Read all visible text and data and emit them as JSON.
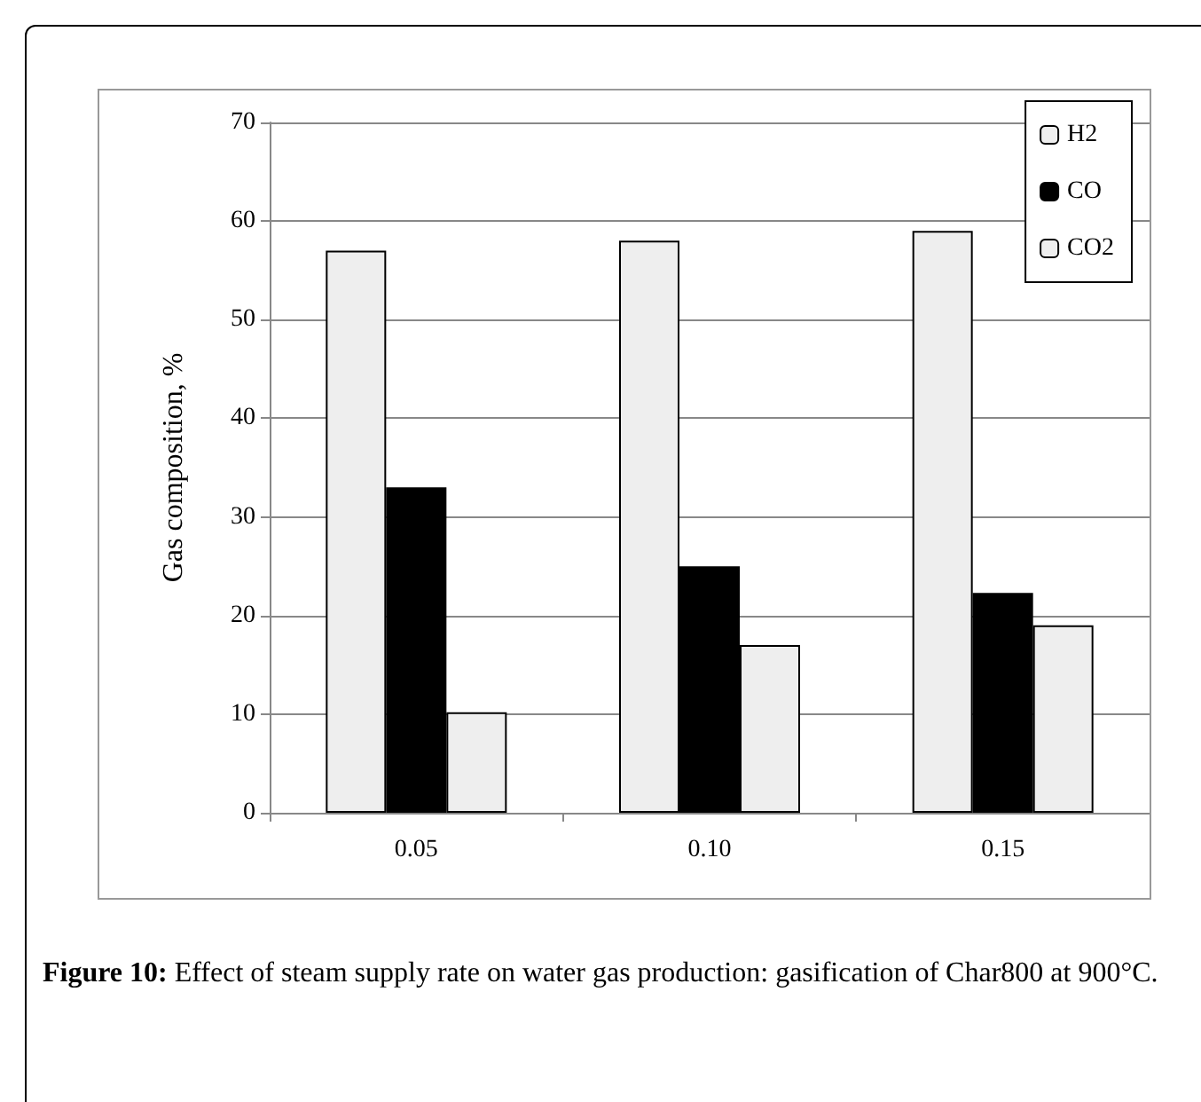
{
  "chart_data": {
    "type": "bar",
    "ylabel": "Gas composition, %",
    "categories": [
      "0.05",
      "0.10",
      "0.15"
    ],
    "series": [
      {
        "name": "H2",
        "color": "#eeeeee",
        "values": [
          57,
          58,
          59
        ]
      },
      {
        "name": "CO",
        "color": "#000000",
        "values": [
          33,
          25,
          22.3
        ]
      },
      {
        "name": "CO2",
        "color": "#eeeeee",
        "values": [
          10.2,
          17,
          19
        ]
      }
    ],
    "ylim": [
      0,
      70
    ],
    "yticks": [
      0,
      10,
      20,
      30,
      40,
      50,
      60,
      70
    ],
    "grid": "y",
    "legend": "top right",
    "annotations": [
      "Figure 10: Effect of steam supply rate on water gas production: gasification of Char800 at 900°C."
    ]
  }
}
